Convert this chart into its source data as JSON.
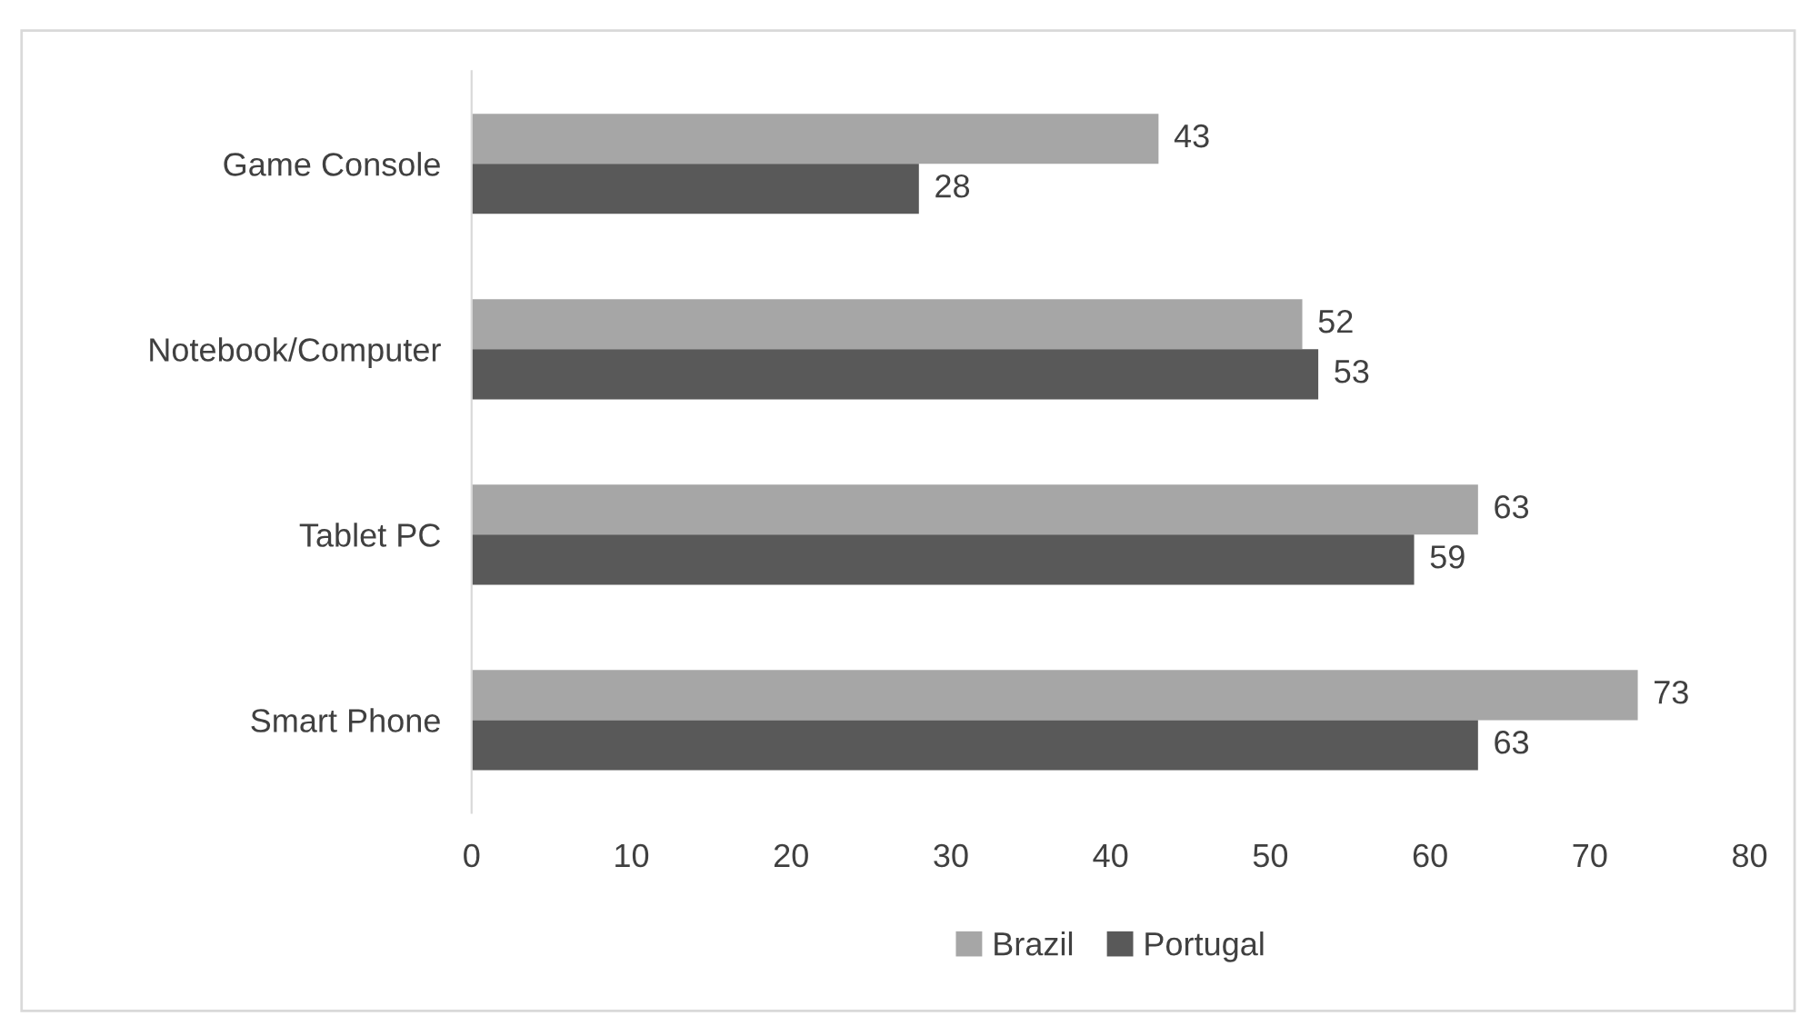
{
  "chart_data": {
    "type": "bar",
    "orientation": "horizontal",
    "categories": [
      "Game Console",
      "Notebook/Computer",
      "Tablet PC",
      "Smart Phone"
    ],
    "series": [
      {
        "name": "Brazil",
        "color": "#a6a6a6",
        "values": [
          43,
          52,
          63,
          73
        ]
      },
      {
        "name": "Portugal",
        "color": "#595959",
        "values": [
          28,
          53,
          59,
          63
        ]
      }
    ],
    "xlim": [
      0,
      80
    ],
    "xticks": [
      0,
      10,
      20,
      30,
      40,
      50,
      60,
      70,
      80
    ],
    "data_labels": true,
    "legend": "bottom",
    "grid": false
  }
}
